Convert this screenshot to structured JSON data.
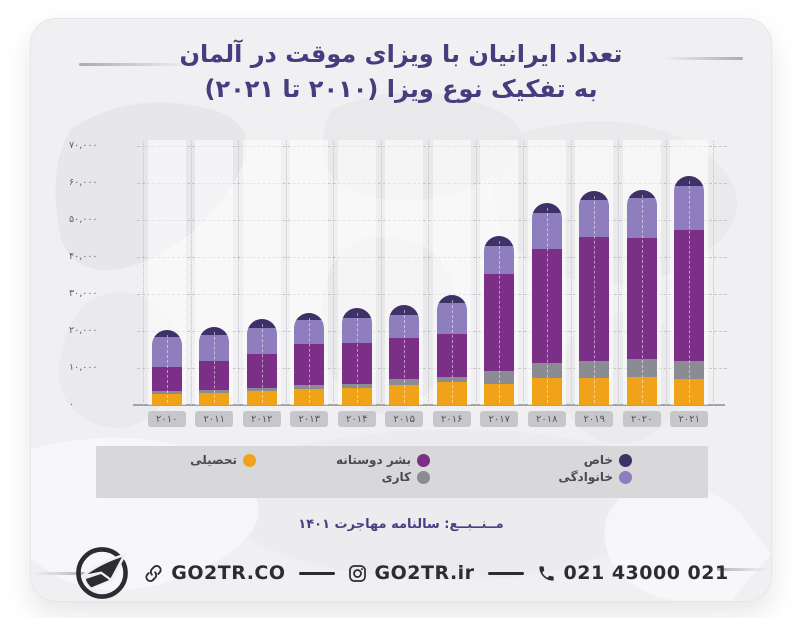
{
  "title": {
    "line1": "تعداد ایرانیان با ویزای موقت در آلمان",
    "line2": "به تفکیک نوع ویزا (۲۰۱۰ تا ۲۰۲۱)"
  },
  "source": "مــنــبــع: سالنامه مهاجرت ۱۴۰۱",
  "footer": {
    "website": "GO2TR.CO",
    "instagram": "GO2TR.ir",
    "phone": "021 43000 021",
    "logo": "go2tr-logo"
  },
  "colors": {
    "title": "#473c7d",
    "card_bg": "#f0f0f2",
    "legend_bg": "#d8d8da",
    "educational": "#f0a319",
    "work": "#8b8b93",
    "humanitarian": "#7b2f86",
    "family": "#8f7ebd",
    "special": "#3e3167"
  },
  "legend": {
    "items": [
      {
        "label": "خاص",
        "color": "#3e3167"
      },
      {
        "label": "خانوادگی",
        "color": "#8f7ebd"
      },
      {
        "label": "بشر دوستانه",
        "color": "#7b2f86"
      },
      {
        "label": "کاری",
        "color": "#8b8b93"
      },
      {
        "label": "تحصیلی",
        "color": "#f0a319"
      }
    ]
  },
  "chart_data": {
    "type": "bar",
    "stacked": true,
    "title": "تعداد ایرانیان با ویزای موقت در آلمان به تفکیک نوع ویزا (۲۰۱۰ تا ۲۰۲۱)",
    "xlabel": "",
    "ylabel": "",
    "ylim": [
      0,
      70000
    ],
    "ytick_step": 10000,
    "ytick_labels": [
      "۰",
      "۱۰,۰۰۰",
      "۲۰,۰۰۰",
      "۳۰,۰۰۰",
      "۴۰,۰۰۰",
      "۵۰,۰۰۰",
      "۶۰,۰۰۰",
      "۷۰,۰۰۰"
    ],
    "grid": true,
    "legend_position": "bottom",
    "categories": [
      2010,
      2011,
      2012,
      2013,
      2014,
      2015,
      2016,
      2017,
      2018,
      2019,
      2020,
      2021
    ],
    "categories_display": [
      "۲۰۱۰",
      "۲۰۱۱",
      "۲۰۱۲",
      "۲۰۱۳",
      "۲۰۱۴",
      "۲۰۱۵",
      "۲۰۱۶",
      "۲۰۱۷",
      "۲۰۱۸",
      "۲۰۱۹",
      "۲۰۲۰",
      "۲۰۲۱"
    ],
    "series": [
      {
        "name": "تحصیلی",
        "color": "#f0a319",
        "values": [
          3000,
          3300,
          3900,
          4400,
          4700,
          5500,
          6300,
          5800,
          7200,
          7200,
          7700,
          6900
        ]
      },
      {
        "name": "کاری",
        "color": "#8b8b93",
        "values": [
          800,
          800,
          800,
          900,
          1100,
          1400,
          1400,
          3300,
          4100,
          4700,
          4700,
          5000
        ]
      },
      {
        "name": "بشر دوستانه",
        "color": "#7b2f86",
        "values": [
          6500,
          7700,
          9000,
          11300,
          11000,
          11300,
          11600,
          26200,
          30900,
          33600,
          32800,
          35300
        ]
      },
      {
        "name": "خانوادگی",
        "color": "#8f7ebd",
        "values": [
          8000,
          7000,
          7000,
          6300,
          6600,
          6100,
          8300,
          7700,
          9600,
          9900,
          10700,
          12100
        ]
      },
      {
        "name": "خاص",
        "color": "#3e3167",
        "values": [
          2000,
          2200,
          2500,
          2000,
          2800,
          2800,
          2200,
          2800,
          2800,
          2500,
          2200,
          2700
        ]
      }
    ]
  }
}
